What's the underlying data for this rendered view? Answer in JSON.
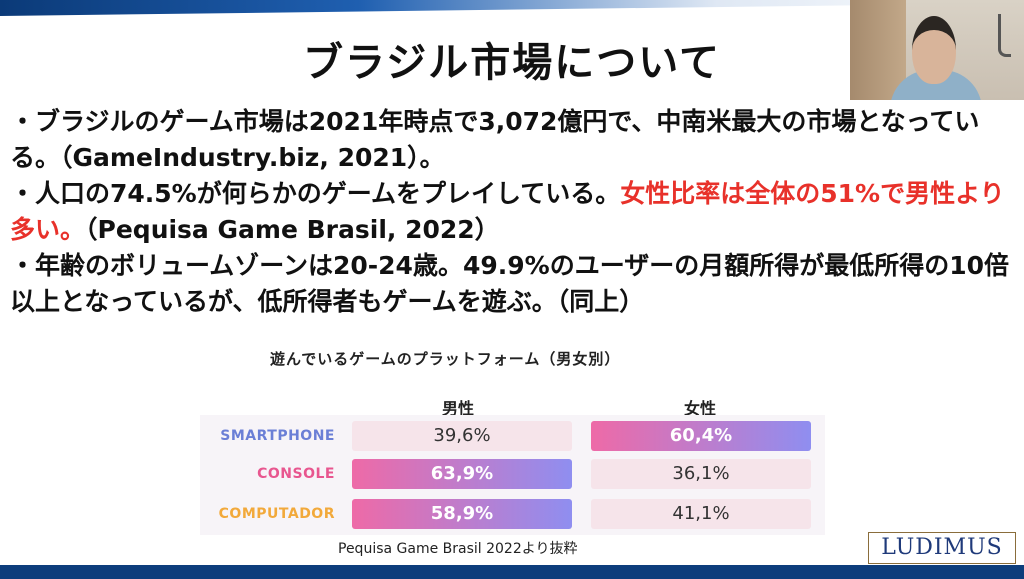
{
  "slide": {
    "title": "ブラジル市場について",
    "bullet1": "・ブラジルのゲーム市場は2021年時点で3,072億円で、中南米最大の市場となっている。（GameIndustry.biz, 2021）。",
    "bullet2_normal": "・人口の74.5%が何らかのゲームをプレイしている。",
    "bullet2_red": "女性比率は全体の51%で男性より多い。",
    "bullet2_tail": "（Pequisa Game Brasil, 2022）",
    "bullet3": "・年齢のボリュームゾーンは20-24歳。49.9%のユーザーの月額所得が最低所得の10倍以上となっているが、低所得者もゲームを遊ぶ。（同上）"
  },
  "chart_data": {
    "type": "table",
    "title": "遊んでいるゲームのプラットフォーム（男女別）",
    "columns": [
      "男性",
      "女性"
    ],
    "rows": [
      {
        "label": "SMARTPHONE",
        "male": "39,6%",
        "female": "60,4%",
        "highlight": "female"
      },
      {
        "label": "CONSOLE",
        "male": "63,9%",
        "female": "36,1%",
        "highlight": "male"
      },
      {
        "label": "COMPUTADOR",
        "male": "58,9%",
        "female": "41,1%",
        "highlight": "male"
      }
    ],
    "values_male": [
      39.6,
      63.9,
      58.9
    ],
    "values_female": [
      60.4,
      36.1,
      41.1
    ]
  },
  "colors": {
    "smartphone_label": "#6b7fd6",
    "console_label": "#e8568f",
    "computador_label": "#f2a93b",
    "highlight_start": "#ee6aa7",
    "highlight_end": "#8f8ef0",
    "red_text": "#e8312a"
  },
  "footer": {
    "source": "Pequisa Game Brasil 2022より抜粋",
    "logo": "LUDIMUS"
  },
  "webcam": {
    "icon": "presenter-video-feed"
  }
}
